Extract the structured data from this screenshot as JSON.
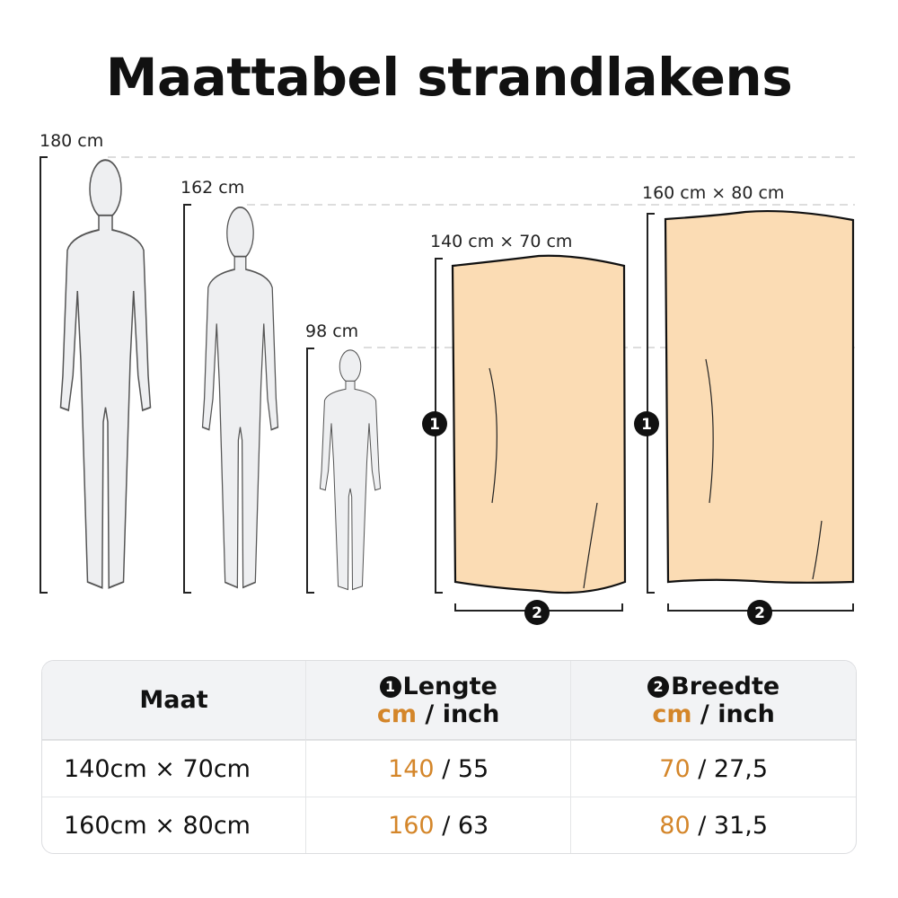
{
  "title": "Maattabel strandlakens",
  "figures": [
    {
      "label": "180 cm"
    },
    {
      "label": "162 cm"
    },
    {
      "label": "98 cm"
    }
  ],
  "towels": [
    {
      "label": "140 cm × 70 cm",
      "length_marker": "1",
      "width_marker": "2"
    },
    {
      "label": "160 cm × 80 cm",
      "length_marker": "1",
      "width_marker": "2"
    }
  ],
  "colors": {
    "accent": "#d4862a",
    "towel": "#fbdcb4",
    "figure": "#eeeff1"
  },
  "table": {
    "headers": {
      "size": "Maat",
      "length_marker": "1",
      "length": "Lengte",
      "width_marker": "2",
      "width": "Breedte",
      "unit_cm": "cm",
      "unit_sep": " / ",
      "unit_inch": "inch"
    },
    "rows": [
      {
        "size": "140cm × 70cm",
        "length_cm": "140",
        "length_inch": "55",
        "width_cm": "70",
        "width_inch": "27,5"
      },
      {
        "size": "160cm × 80cm",
        "length_cm": "160",
        "length_inch": "63",
        "width_cm": "80",
        "width_inch": "31,5"
      }
    ],
    "sep": " / "
  }
}
